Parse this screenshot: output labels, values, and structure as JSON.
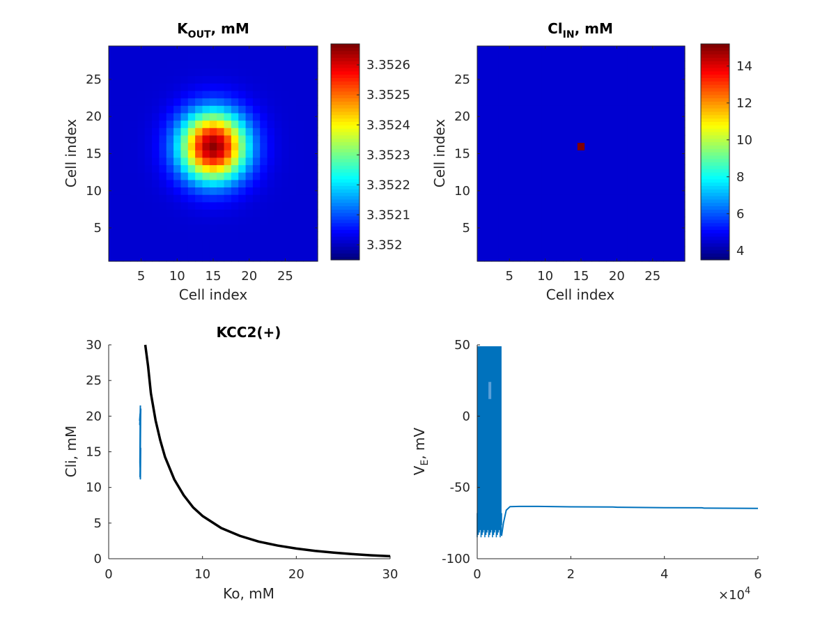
{
  "chart_data": [
    {
      "type": "heatmap",
      "title": "K",
      "title_sub": "OUT",
      "title_rest": ", mM",
      "xlabel": "Cell index",
      "ylabel": "Cell index",
      "xlim": [
        0.5,
        29.5
      ],
      "ylim": [
        0.5,
        29.5
      ],
      "xticks": [
        5,
        10,
        15,
        20,
        25
      ],
      "yticks": [
        5,
        10,
        15,
        20,
        25
      ],
      "grid_size": 29,
      "peak_cell": [
        15,
        16
      ],
      "peak_value": 3.35266,
      "baseline_value": 3.35195,
      "falloff_width": 3.2,
      "colormap": "jet",
      "clim": [
        3.35195,
        3.35267
      ],
      "colorbar_ticks": [
        {
          "value": 3.352,
          "label": "3.352"
        },
        {
          "value": 3.3521,
          "label": "3.3521"
        },
        {
          "value": 3.3522,
          "label": "3.3522"
        },
        {
          "value": 3.3523,
          "label": "3.3523"
        },
        {
          "value": 3.3524,
          "label": "3.3524"
        },
        {
          "value": 3.3525,
          "label": "3.3525"
        },
        {
          "value": 3.3526,
          "label": "3.3526"
        }
      ]
    },
    {
      "type": "heatmap",
      "title": "Cl",
      "title_sub": "IN",
      "title_rest": ", mM",
      "xlabel": "Cell index",
      "ylabel": "Cell index",
      "xlim": [
        0.5,
        29.5
      ],
      "ylim": [
        0.5,
        29.5
      ],
      "xticks": [
        5,
        10,
        15,
        20,
        25
      ],
      "yticks": [
        5,
        10,
        15,
        20,
        25
      ],
      "grid_size": 29,
      "peak_cell": [
        15,
        16
      ],
      "peak_value": 15.2,
      "baseline_value": 3.5,
      "colormap": "jet",
      "clim": [
        3.5,
        15.2
      ],
      "colorbar_ticks": [
        {
          "value": 4,
          "label": "4"
        },
        {
          "value": 6,
          "label": "6"
        },
        {
          "value": 8,
          "label": "8"
        },
        {
          "value": 10,
          "label": "10"
        },
        {
          "value": 12,
          "label": "12"
        },
        {
          "value": 14,
          "label": "14"
        }
      ]
    },
    {
      "type": "line",
      "title": "KCC2(+)",
      "xlabel": "Ko, mM",
      "ylabel": "Cli, mM",
      "xlim": [
        0,
        30
      ],
      "ylim": [
        0,
        30
      ],
      "xticks": [
        0,
        10,
        20,
        30
      ],
      "yticks": [
        0,
        5,
        10,
        15,
        20,
        25,
        30
      ],
      "series": [
        {
          "color": "#000000",
          "x": [
            3.9,
            4.2,
            4.5,
            5,
            5.5,
            6,
            7,
            8,
            9,
            10,
            12,
            14,
            16,
            18,
            20,
            22,
            24,
            26,
            28,
            30
          ],
          "y": [
            30,
            27,
            23.2,
            19.4,
            16.6,
            14.3,
            11.1,
            8.9,
            7.2,
            6.0,
            4.3,
            3.2,
            2.4,
            1.85,
            1.43,
            1.1,
            0.85,
            0.65,
            0.48,
            0.35
          ]
        },
        {
          "color": "#0072BD",
          "x": [
            3.38,
            3.35,
            3.42,
            3.36,
            3.41,
            3.37,
            3.4,
            3.36,
            3.39,
            3.34,
            3.41,
            3.38,
            3.33,
            3.36,
            3.31,
            3.37,
            3.3,
            3.35
          ],
          "y": [
            21.5,
            19.5,
            21.0,
            17.0,
            20.5,
            15.0,
            19.0,
            13.0,
            17.5,
            11.5,
            15.5,
            11.2,
            13.5,
            19.8,
            18.8,
            20.6,
            19.4,
            20.3
          ]
        }
      ]
    },
    {
      "type": "line",
      "title": "",
      "xlabel": "",
      "ylabel": "V",
      "ylabel_sub": "E",
      "ylabel_rest": ", mV",
      "xlim": [
        0,
        6
      ],
      "ylim": [
        -100,
        50
      ],
      "xticks": [
        0,
        2,
        4,
        6
      ],
      "yticks": [
        -100,
        -50,
        0,
        50
      ],
      "x_exponent_base": "×10",
      "x_exponent_power": "4",
      "spike_region": {
        "x_start": 0.0,
        "x_end": 0.52,
        "y_min": -86,
        "y_max": 49,
        "ylow_band": [
          -85,
          -68
        ],
        "gap_band_x": [
          0.24,
          0.3
        ],
        "gap_band_y": [
          12,
          24
        ]
      },
      "series": [
        {
          "color": "#0072BD",
          "x": [
            0.52,
            0.56,
            0.62,
            0.7,
            0.9,
            1.3,
            2.0,
            2.9,
            3.0,
            4.0,
            4.8,
            4.85,
            6.0
          ],
          "y": [
            -84,
            -75,
            -66,
            -63.5,
            -63.3,
            -63.3,
            -63.6,
            -63.7,
            -63.9,
            -64.2,
            -64.3,
            -64.5,
            -64.7
          ]
        }
      ]
    }
  ]
}
